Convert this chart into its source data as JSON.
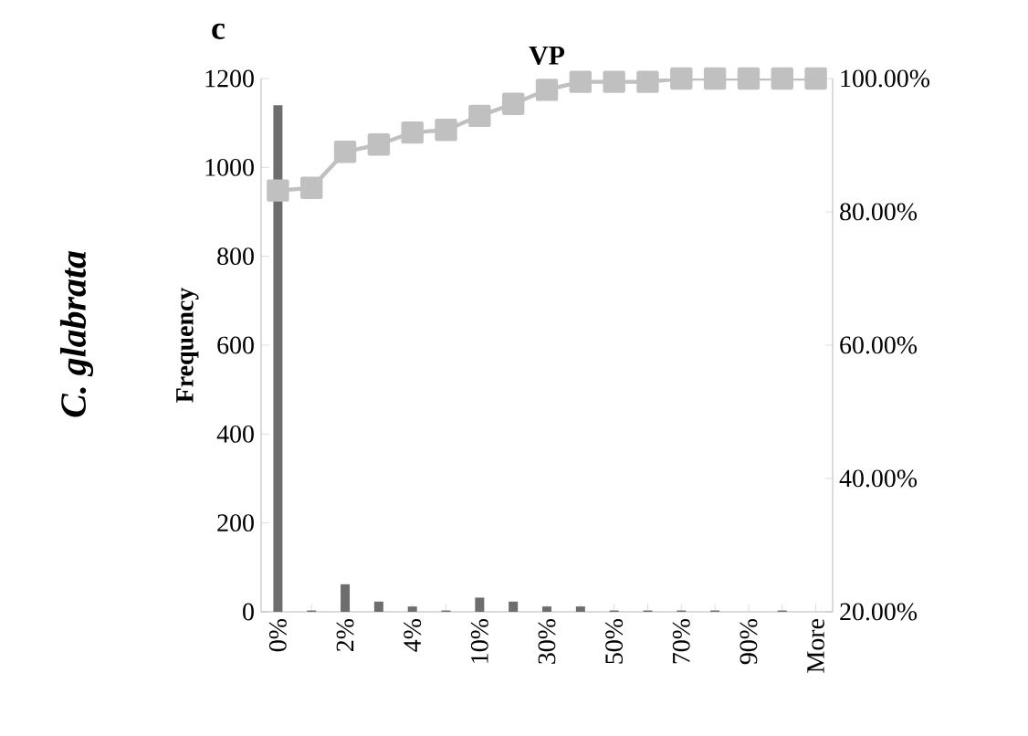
{
  "chart_data": {
    "type": "bar",
    "title": "VP",
    "ylabel": "Frequency",
    "annotations": [
      "c",
      "C. glabrata"
    ],
    "categories": [
      "0%",
      null,
      "2%",
      null,
      "4%",
      null,
      "10%",
      null,
      "30%",
      null,
      "50%",
      null,
      "70%",
      null,
      "90%",
      null,
      "More"
    ],
    "series": [
      {
        "color": "#6d6d6d",
        "values": [
          1140,
          3,
          62,
          23,
          12,
          3,
          32,
          23,
          12,
          12,
          3,
          3,
          3,
          3,
          0,
          3,
          0
        ]
      },
      {
        "type": "line",
        "axis": "y2",
        "color": "#c0c0c0",
        "marker": "square",
        "values": [
          83.2,
          83.6,
          89.0,
          90.1,
          91.9,
          92.3,
          94.4,
          96.2,
          98.3,
          99.5,
          99.5,
          99.5,
          100,
          100,
          100,
          100,
          100
        ]
      }
    ],
    "ylim": [
      0,
      1200
    ],
    "yticks": [
      0,
      200,
      400,
      600,
      800,
      1000,
      1200
    ],
    "y2lim": [
      20,
      100
    ],
    "y2ticks": [
      {
        "value": 20,
        "label": "20.00%"
      },
      {
        "value": 40,
        "label": "40.00%"
      },
      {
        "value": 60,
        "label": "60.00%"
      },
      {
        "value": 80,
        "label": "80.00%"
      },
      {
        "value": 100,
        "label": "100.00%"
      }
    ],
    "grid": false
  }
}
